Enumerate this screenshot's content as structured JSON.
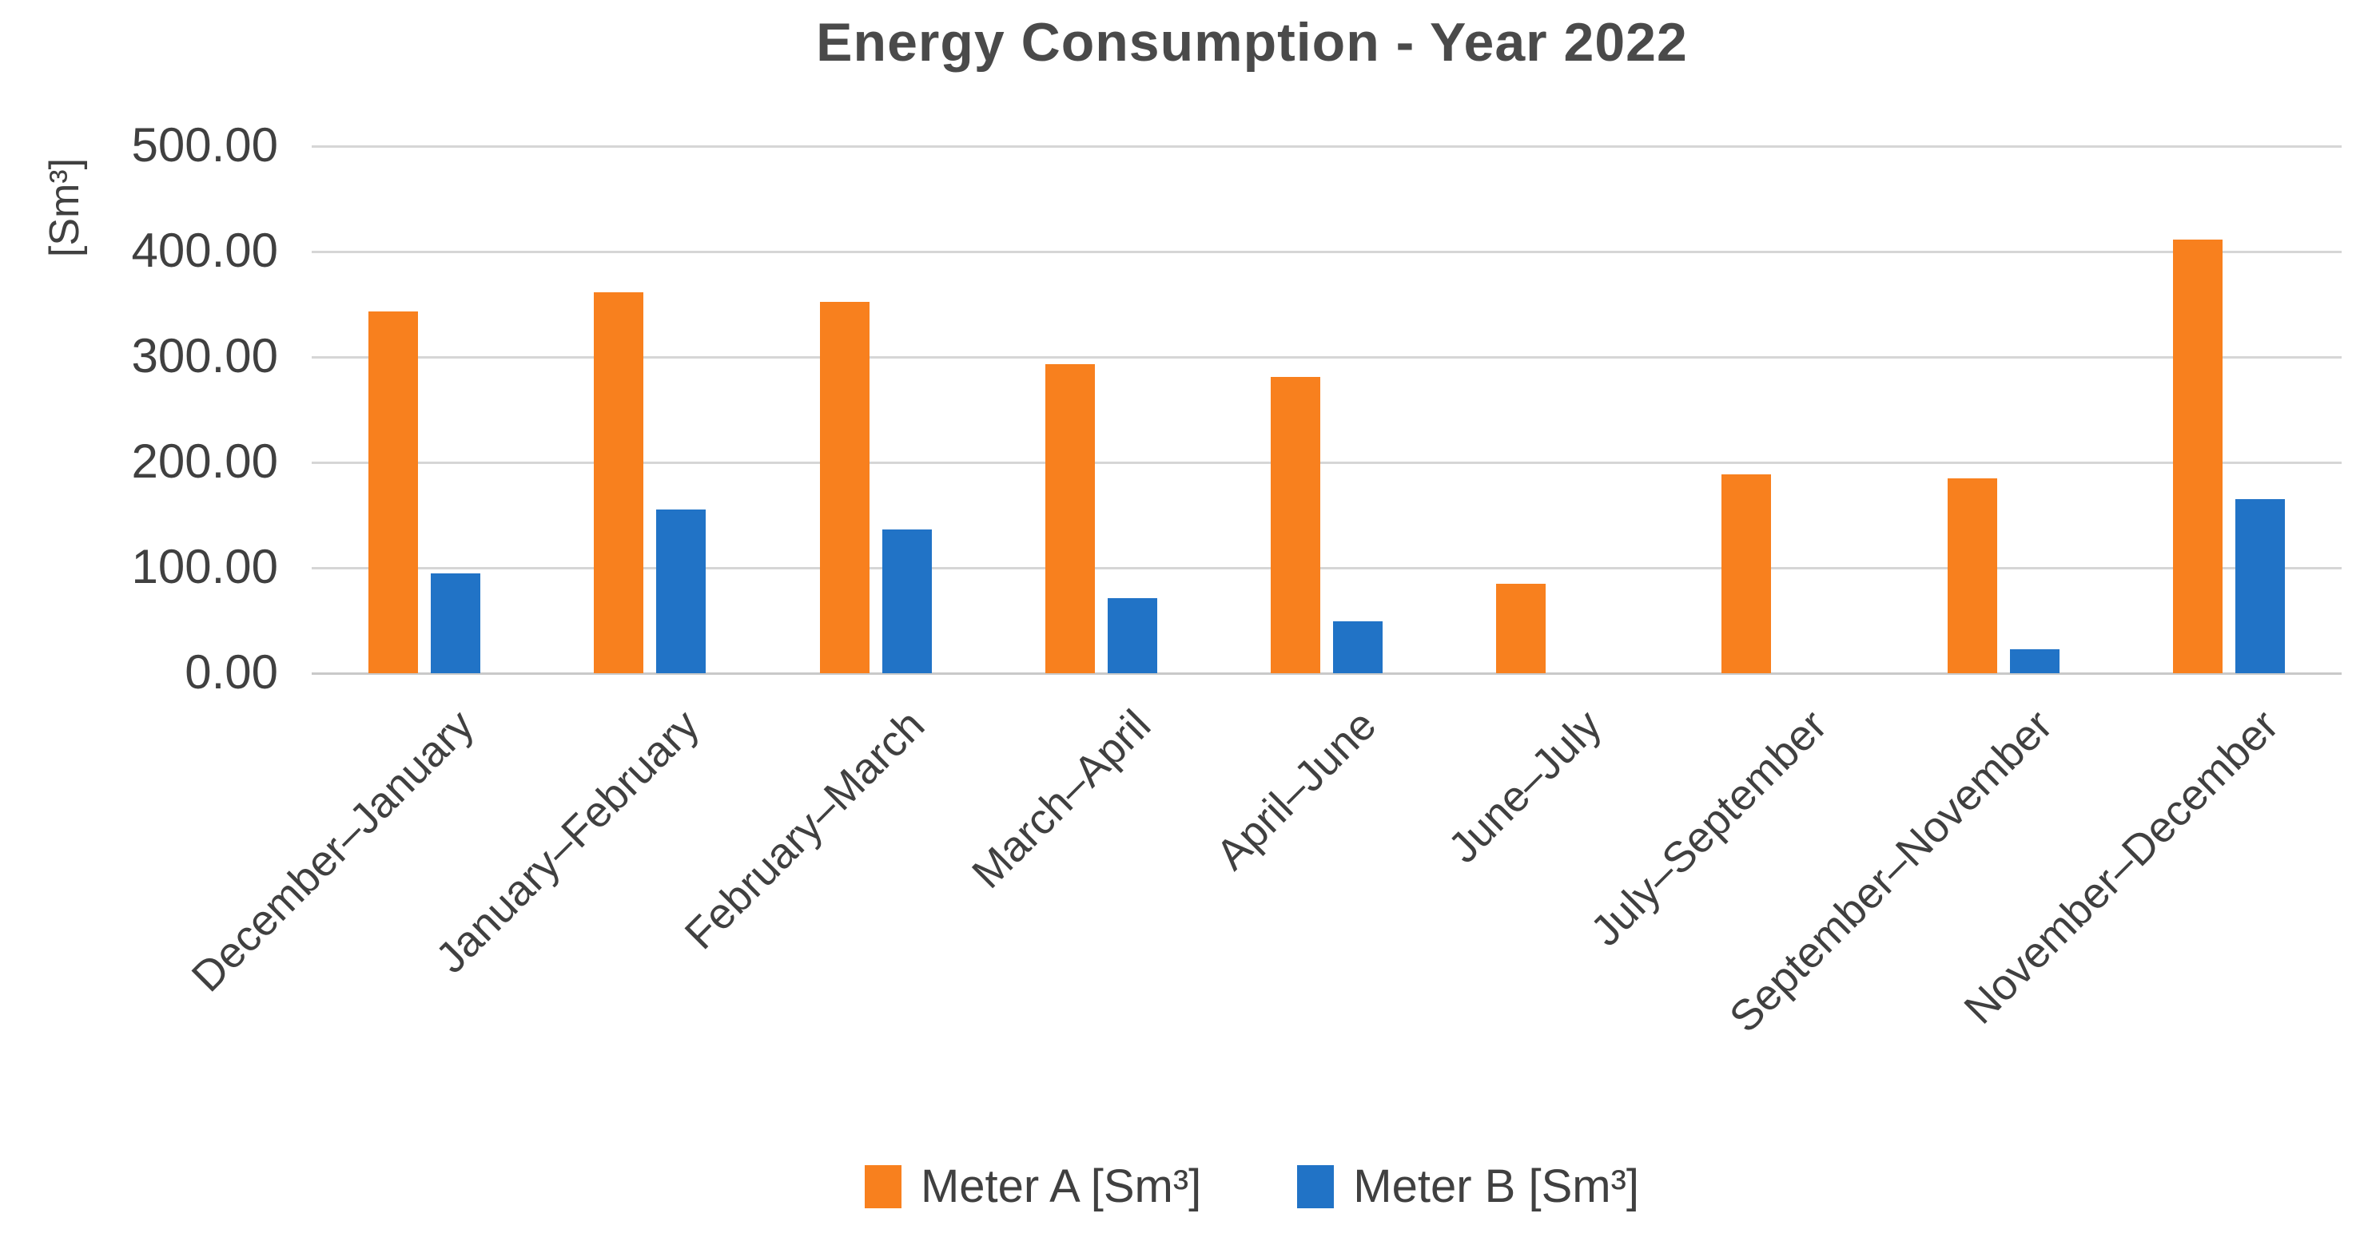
{
  "chart_data": {
    "type": "bar",
    "title": "Energy Consumption - Year 2022",
    "y_axis": {
      "title": "[Sm³]",
      "ticks": [
        "500.00",
        "400.00",
        "300.00",
        "200.00",
        "100.00",
        "0.00"
      ],
      "min": 0,
      "max": 500
    },
    "categories": [
      "December–January",
      "January–February",
      "February–March",
      "March–April",
      "April–June",
      "June–July",
      "July–September",
      "September–November",
      "November–December"
    ],
    "series": [
      {
        "name": "Meter A [Sm³]",
        "color": "#F8801E",
        "values": [
          343,
          361,
          352,
          293,
          281,
          85,
          189,
          185,
          411
        ]
      },
      {
        "name": "Meter B [Sm³]",
        "color": "#2173C6",
        "values": [
          95,
          155,
          136,
          71,
          49,
          0,
          0,
          23,
          165
        ]
      }
    ],
    "layout": {
      "grid": true,
      "legend_position": "bottom",
      "x_label_rotation": -45
    }
  }
}
